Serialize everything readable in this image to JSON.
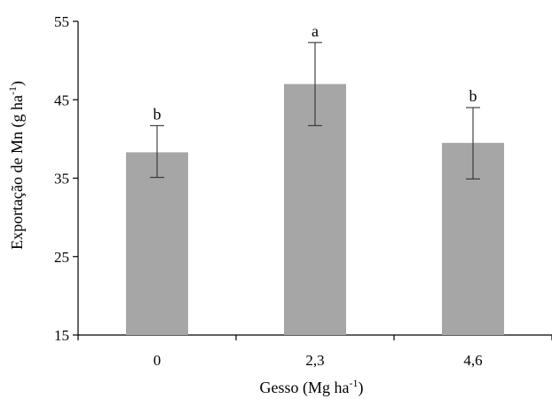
{
  "chart_data": {
    "type": "bar",
    "categories": [
      "0",
      "2,3",
      "4,6"
    ],
    "values": [
      38.3,
      47.0,
      39.5
    ],
    "error_low": [
      35.1,
      41.7,
      34.9
    ],
    "error_high": [
      41.7,
      52.3,
      44.0
    ],
    "significance_letters": [
      "b",
      "a",
      "b"
    ],
    "xlabel_main": "Gesso (Mg ha",
    "xlabel_sup": "-1",
    "xlabel_end": ")",
    "ylabel_main": "Exportação  de Mn (g ha",
    "ylabel_sup": "-1",
    "ylabel_end": ")",
    "ylim": [
      15,
      55
    ],
    "yticks": [
      "15",
      "25",
      "35",
      "45",
      "55"
    ],
    "grid": false,
    "bar_color": "#a6a6a6"
  }
}
